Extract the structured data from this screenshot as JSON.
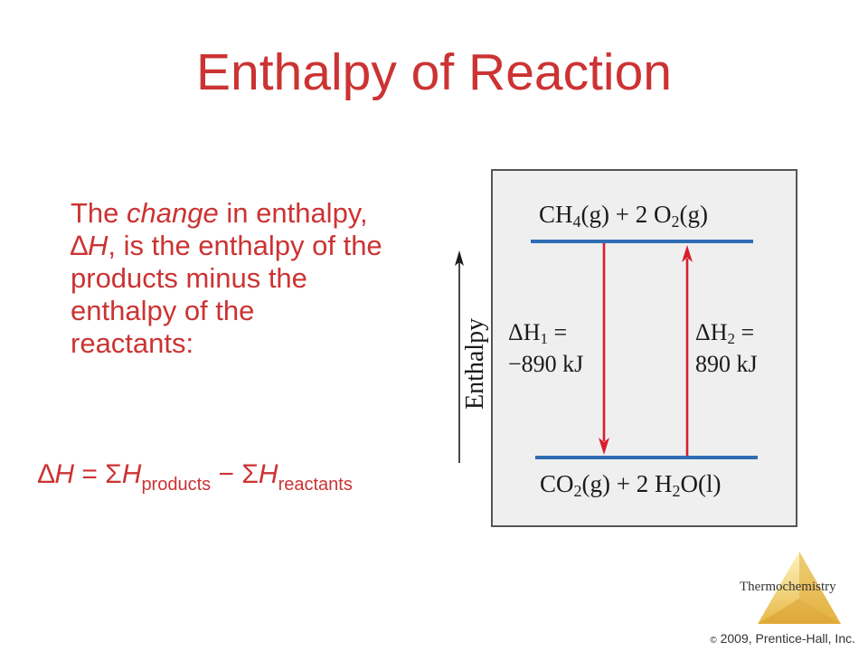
{
  "slide": {
    "title": "Enthalpy of Reaction",
    "colors": {
      "title": "#cc3333",
      "level_line": "#2f6db3",
      "arrow": "#d81e2e",
      "panel_bg": "#efefef"
    },
    "body": {
      "t1": "The ",
      "t1_em": "change",
      "t1_rest": " in enthalpy,",
      "t2_sym": "∆",
      "t2_var": "H",
      "t2_rest": ", is the enthalpy of the",
      "t3": "products minus the",
      "t4": "enthalpy of the",
      "t5": "reactants:"
    },
    "equation": {
      "delta": "∆",
      "h": "H",
      "eq": " = Σ",
      "h2": "H",
      "sub1": "products",
      "minus": " − Σ",
      "h3": "H",
      "sub2": "reactants"
    }
  },
  "diagram": {
    "reactants": {
      "a": "CH",
      "a_sub": "4",
      "a_phase": "(g)",
      "b": " + 2 O",
      "b_sub": "2",
      "b_phase": "(g)"
    },
    "products": {
      "a": "CO",
      "a_sub": "2",
      "a_phase": "(g)",
      "b": " + 2 H",
      "b_sub": "2",
      "b_o": "O",
      "b_phase": "(l)"
    },
    "dh1": {
      "sym": "ΔH",
      "sub": "1",
      "eq": " =",
      "value": "−890 kJ"
    },
    "dh2": {
      "sym": "ΔH",
      "sub": "2",
      "eq": " =",
      "value": "890 kJ"
    },
    "axis_label": "Enthalpy"
  },
  "footer": {
    "badge": "Thermochemistry",
    "copyright_symbol": "©",
    "copyright_text": " 2009, Prentice-Hall, Inc."
  }
}
